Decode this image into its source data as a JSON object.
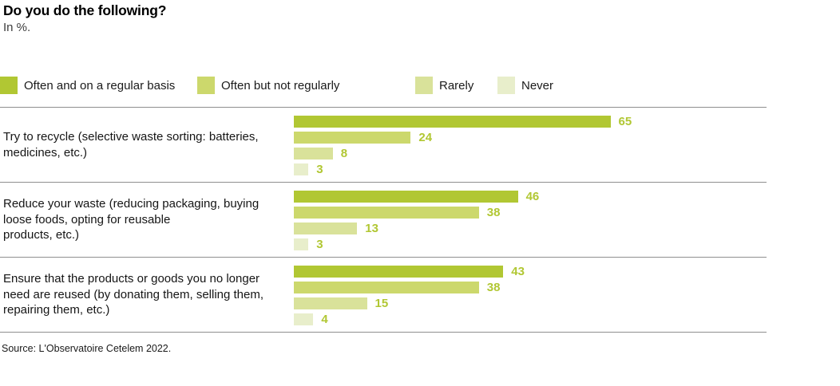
{
  "title": "Do you do the following?",
  "subtitle": "In %.",
  "source": "Source: L'Observatoire Cetelem 2022.",
  "colors": {
    "series": [
      "#b1c733",
      "#ccd86c",
      "#d9e29a",
      "#e8eecb"
    ],
    "value_label": "#b1c733",
    "separator": "#8f8f8f",
    "title_text": "#000000",
    "body_text": "#1a1a1a"
  },
  "legend": [
    {
      "label": "Often and on a regular basis",
      "color": "#b1c733"
    },
    {
      "label": "Often but not regularly",
      "color": "#ccd86c"
    },
    {
      "label": "Rarely",
      "color": "#d9e29a"
    },
    {
      "label": "Never",
      "color": "#e8eecb"
    }
  ],
  "chart_data": {
    "type": "bar",
    "orientation": "horizontal",
    "unit": "%",
    "title": "Do you do the following?",
    "subtitle": "In %.",
    "legend_position": "top",
    "grid": false,
    "xlim": [
      0,
      100
    ],
    "categories": [
      "Try to recycle (selective waste sorting: batteries, medicines, etc.)",
      "Reduce your waste (reducing packaging, buying loose foods, opting for reusable products, etc.)",
      "Ensure that the products or goods you no longer need are reused (by donating them, selling them, repairing them, etc.)"
    ],
    "categories_lines": [
      [
        "Try to recycle (selective waste sorting: batteries,",
        "medicines, etc.)"
      ],
      [
        "Reduce your waste (reducing packaging, buying",
        "loose foods, opting for reusable",
        "products, etc.)"
      ],
      [
        "Ensure that the products or goods you no longer",
        "need are reused (by donating them, selling them,",
        "repairing them, etc.)"
      ]
    ],
    "series": [
      {
        "name": "Often and on a regular basis",
        "values": [
          65,
          46,
          43
        ]
      },
      {
        "name": "Often but not regularly",
        "values": [
          24,
          38,
          38
        ]
      },
      {
        "name": "Rarely",
        "values": [
          8,
          13,
          15
        ]
      },
      {
        "name": "Never",
        "values": [
          3,
          3,
          4
        ]
      }
    ],
    "value_labels_shown": true,
    "source": "Source: L'Observatoire Cetelem 2022."
  }
}
